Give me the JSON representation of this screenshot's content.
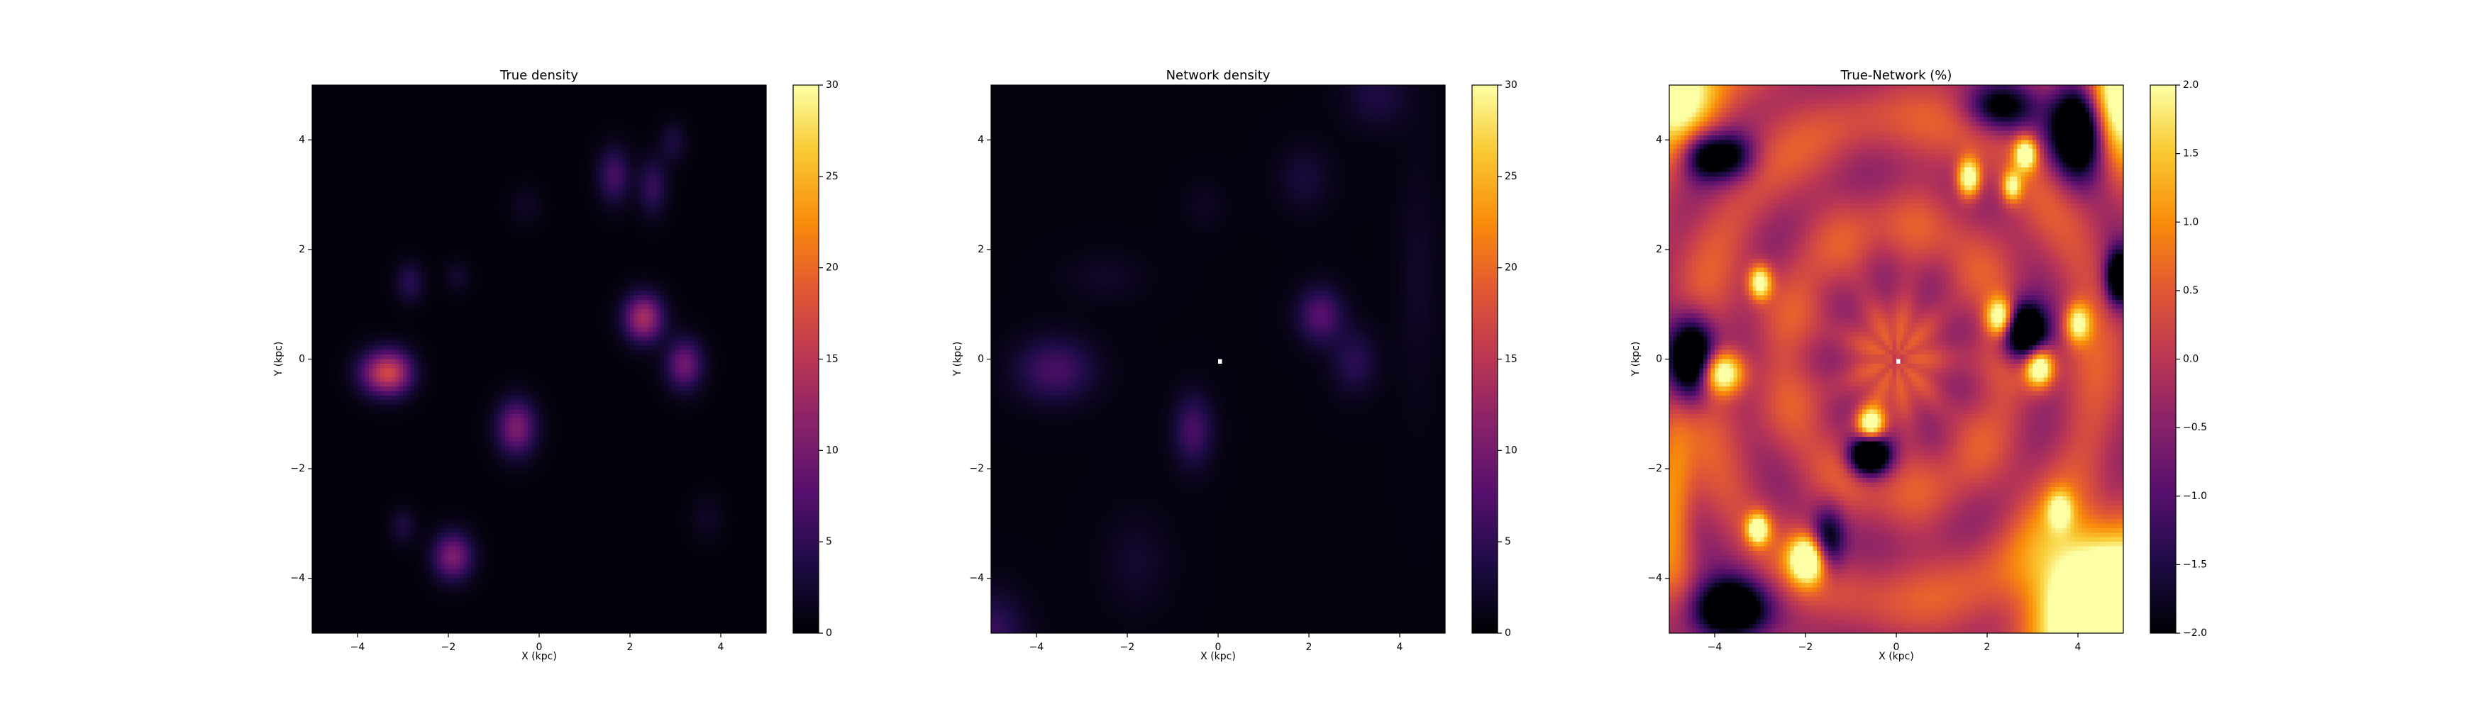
{
  "chart_data": [
    {
      "type": "heatmap",
      "title": "True density",
      "xlabel": "X (kpc)",
      "ylabel": "Y (kpc)",
      "xlim": [
        -5,
        5
      ],
      "ylim": [
        -5,
        5
      ],
      "xticks": [
        "−4",
        "−2",
        "0",
        "2",
        "4"
      ],
      "yticks": [
        "−4",
        "−2",
        "0",
        "2",
        "4"
      ],
      "colormap": "inferno",
      "colorbar": {
        "range": [
          0,
          30
        ],
        "ticks": [
          "0",
          "5",
          "10",
          "15",
          "20",
          "25",
          "30"
        ]
      },
      "background_value": 0.4,
      "blobs": [
        {
          "x": -3.5,
          "y": -0.25,
          "amp": 11,
          "sx": 0.35,
          "sy": 0.28
        },
        {
          "x": -3.15,
          "y": -0.25,
          "amp": 8,
          "sx": 0.3,
          "sy": 0.28
        },
        {
          "x": -0.5,
          "y": -1.25,
          "amp": 10,
          "sx": 0.3,
          "sy": 0.35
        },
        {
          "x": -1.9,
          "y": -3.6,
          "amp": 10,
          "sx": 0.3,
          "sy": 0.3
        },
        {
          "x": 2.3,
          "y": 0.75,
          "amp": 13,
          "sx": 0.3,
          "sy": 0.3
        },
        {
          "x": 3.2,
          "y": -0.1,
          "amp": 9,
          "sx": 0.28,
          "sy": 0.32
        },
        {
          "x": 1.65,
          "y": 3.35,
          "amp": 6,
          "sx": 0.25,
          "sy": 0.35
        },
        {
          "x": 2.5,
          "y": 3.15,
          "amp": 5,
          "sx": 0.22,
          "sy": 0.35
        },
        {
          "x": 2.95,
          "y": 3.95,
          "amp": 3,
          "sx": 0.2,
          "sy": 0.25
        },
        {
          "x": -2.85,
          "y": 1.4,
          "amp": 4,
          "sx": 0.22,
          "sy": 0.25
        },
        {
          "x": -1.8,
          "y": 1.5,
          "amp": 2,
          "sx": 0.2,
          "sy": 0.2
        },
        {
          "x": -3.0,
          "y": -3.05,
          "amp": 3,
          "sx": 0.2,
          "sy": 0.22
        },
        {
          "x": -0.3,
          "y": 2.8,
          "amp": 1.5,
          "sx": 0.25,
          "sy": 0.25
        },
        {
          "x": 3.7,
          "y": -2.9,
          "amp": 1.5,
          "sx": 0.25,
          "sy": 0.3
        }
      ]
    },
    {
      "type": "heatmap",
      "title": "Network density",
      "xlabel": "X (kpc)",
      "ylabel": "Y (kpc)",
      "xlim": [
        -5,
        5
      ],
      "ylim": [
        -5,
        5
      ],
      "xticks": [
        "−4",
        "−2",
        "0",
        "2",
        "4"
      ],
      "yticks": [
        "−4",
        "−2",
        "0",
        "2",
        "4"
      ],
      "colormap": "inferno",
      "colorbar": {
        "range": [
          0,
          30
        ],
        "ticks": [
          "0",
          "5",
          "10",
          "15",
          "20",
          "25",
          "30"
        ]
      },
      "background_value": 0.6,
      "center_marker": {
        "x": 0,
        "y": 0
      },
      "blobs": [
        {
          "x": -3.6,
          "y": -0.2,
          "amp": 6,
          "sx": 0.6,
          "sy": 0.4
        },
        {
          "x": -0.55,
          "y": -1.3,
          "amp": 6,
          "sx": 0.3,
          "sy": 0.45
        },
        {
          "x": 2.25,
          "y": 0.8,
          "amp": 7,
          "sx": 0.35,
          "sy": 0.35
        },
        {
          "x": 3.0,
          "y": -0.05,
          "amp": 4,
          "sx": 0.35,
          "sy": 0.4
        },
        {
          "x": 1.9,
          "y": 3.3,
          "amp": 2.5,
          "sx": 0.4,
          "sy": 0.4
        },
        {
          "x": 3.5,
          "y": 4.8,
          "amp": 3,
          "sx": 0.5,
          "sy": 0.4
        },
        {
          "x": -2.5,
          "y": 1.5,
          "amp": 1.5,
          "sx": 0.6,
          "sy": 0.3
        },
        {
          "x": -1.8,
          "y": -3.7,
          "amp": 1.8,
          "sx": 0.5,
          "sy": 0.6
        },
        {
          "x": -5.0,
          "y": -5.0,
          "amp": 5,
          "sx": 0.5,
          "sy": 0.5
        },
        {
          "x": -0.3,
          "y": 2.8,
          "amp": 1.2,
          "sx": 0.3,
          "sy": 0.3
        },
        {
          "x": 4.4,
          "y": 1.5,
          "amp": 1.5,
          "sx": 0.3,
          "sy": 1.5
        }
      ]
    },
    {
      "type": "heatmap",
      "title": "True-Network (%)",
      "xlabel": "X (kpc)",
      "ylabel": "Y (kpc)",
      "xlim": [
        -5,
        5
      ],
      "ylim": [
        -5,
        5
      ],
      "xticks": [
        "−4",
        "−2",
        "0",
        "2",
        "4"
      ],
      "yticks": [
        "−4",
        "−2",
        "0",
        "2",
        "4"
      ],
      "colormap": "inferno",
      "colorbar": {
        "range": [
          -2,
          2
        ],
        "ticks": [
          "−2.0",
          "−1.5",
          "−1.0",
          "−0.5",
          "0.0",
          "0.5",
          "1.0",
          "1.5",
          "2.0"
        ]
      },
      "background_value": 0.1,
      "center_marker": {
        "x": 0,
        "y": 0
      },
      "hot_spots": [
        {
          "x": -3.85,
          "y": -0.25,
          "amp": 3,
          "sx": 0.35,
          "sy": 0.28
        },
        {
          "x": -3.0,
          "y": 1.4,
          "amp": 2.5,
          "sx": 0.18,
          "sy": 0.22
        },
        {
          "x": -3.05,
          "y": -3.1,
          "amp": 2.5,
          "sx": 0.18,
          "sy": 0.2
        },
        {
          "x": -1.95,
          "y": -3.65,
          "amp": 3,
          "sx": 0.28,
          "sy": 0.3
        },
        {
          "x": -0.55,
          "y": -1.2,
          "amp": 3,
          "sx": 0.22,
          "sy": 0.22
        },
        {
          "x": 1.6,
          "y": 3.3,
          "amp": 2.8,
          "sx": 0.18,
          "sy": 0.25
        },
        {
          "x": 2.85,
          "y": 3.75,
          "amp": 2.5,
          "sx": 0.18,
          "sy": 0.22
        },
        {
          "x": 2.55,
          "y": 3.15,
          "amp": 2,
          "sx": 0.15,
          "sy": 0.2
        },
        {
          "x": 2.3,
          "y": 0.75,
          "amp": 3,
          "sx": 0.22,
          "sy": 0.25
        },
        {
          "x": 3.15,
          "y": -0.15,
          "amp": 3,
          "sx": 0.22,
          "sy": 0.25
        },
        {
          "x": 4.0,
          "y": 0.65,
          "amp": 2,
          "sx": 0.2,
          "sy": 0.25
        },
        {
          "x": 3.6,
          "y": -2.75,
          "amp": 1.5,
          "sx": 0.2,
          "sy": 0.25
        },
        {
          "x": -4.9,
          "y": 4.9,
          "amp": 2.5,
          "sx": 0.6,
          "sy": 0.7
        },
        {
          "x": 4.9,
          "y": 4.9,
          "amp": 2.5,
          "sx": 0.5,
          "sy": 0.8
        },
        {
          "x": 4.3,
          "y": -4.4,
          "amp": 3.5,
          "sx": 1.0,
          "sy": 0.9
        },
        {
          "x": -4.9,
          "y": -2.5,
          "amp": 1.2,
          "sx": 0.3,
          "sy": 1.2
        }
      ],
      "cold_spots": [
        {
          "x": -4.5,
          "y": 0.0,
          "amp": 4,
          "sx": 0.35,
          "sy": 0.5
        },
        {
          "x": -0.6,
          "y": -1.75,
          "amp": 4,
          "sx": 0.3,
          "sy": 0.25
        },
        {
          "x": 2.8,
          "y": 0.5,
          "amp": 4,
          "sx": 0.35,
          "sy": 0.35
        },
        {
          "x": 4.9,
          "y": 1.5,
          "amp": 3,
          "sx": 0.2,
          "sy": 0.35
        },
        {
          "x": -3.7,
          "y": -4.6,
          "amp": 3.5,
          "sx": 0.6,
          "sy": 0.4
        },
        {
          "x": -1.5,
          "y": -3.3,
          "amp": 2,
          "sx": 0.25,
          "sy": 0.4
        },
        {
          "x": 4.0,
          "y": 4.2,
          "amp": 4,
          "sx": 0.4,
          "sy": 0.6
        },
        {
          "x": 2.3,
          "y": 4.6,
          "amp": 2,
          "sx": 0.5,
          "sy": 0.3
        },
        {
          "x": -4.3,
          "y": 3.7,
          "amp": 1.5,
          "sx": 0.3,
          "sy": 0.3
        },
        {
          "x": -3.7,
          "y": 3.7,
          "amp": 2,
          "sx": 0.4,
          "sy": 0.3
        }
      ]
    }
  ]
}
